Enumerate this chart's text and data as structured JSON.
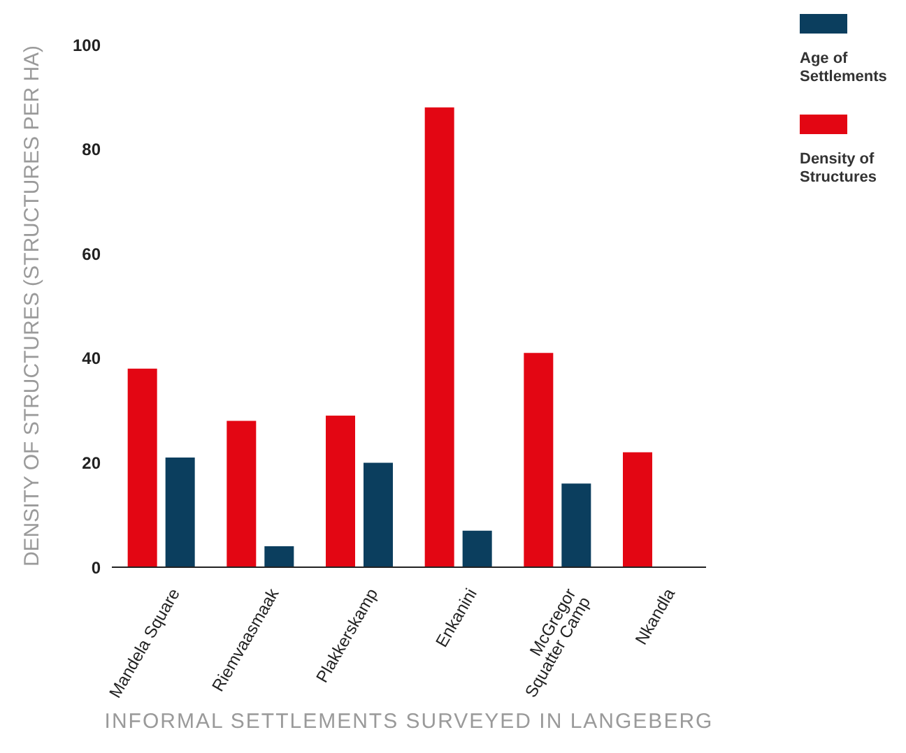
{
  "chart_data": {
    "type": "bar",
    "xlabel": "INFORMAL SETTLEMENTS SURVEYED IN LANGEBERG",
    "ylabel": "DENSITY OF STRUCTURES (STRUCTURES PER HA)",
    "categories": [
      "Mandela Square",
      "Riemvaasmaak",
      "Plakkerskamp",
      "Enkanini",
      "McGregor Squatter Camp",
      "Nkandla"
    ],
    "series": [
      {
        "name": "Density of Structures",
        "color": "#e30613",
        "values": [
          38,
          28,
          29,
          88,
          41,
          22
        ]
      },
      {
        "name": "Age of Settlements",
        "color": "#0b3e5e",
        "values": [
          21,
          4,
          20,
          7,
          16,
          null
        ]
      }
    ],
    "ylim": [
      0,
      100
    ],
    "yticks": [
      0,
      20,
      40,
      60,
      80,
      100
    ],
    "grid": false,
    "legend": "top right"
  }
}
